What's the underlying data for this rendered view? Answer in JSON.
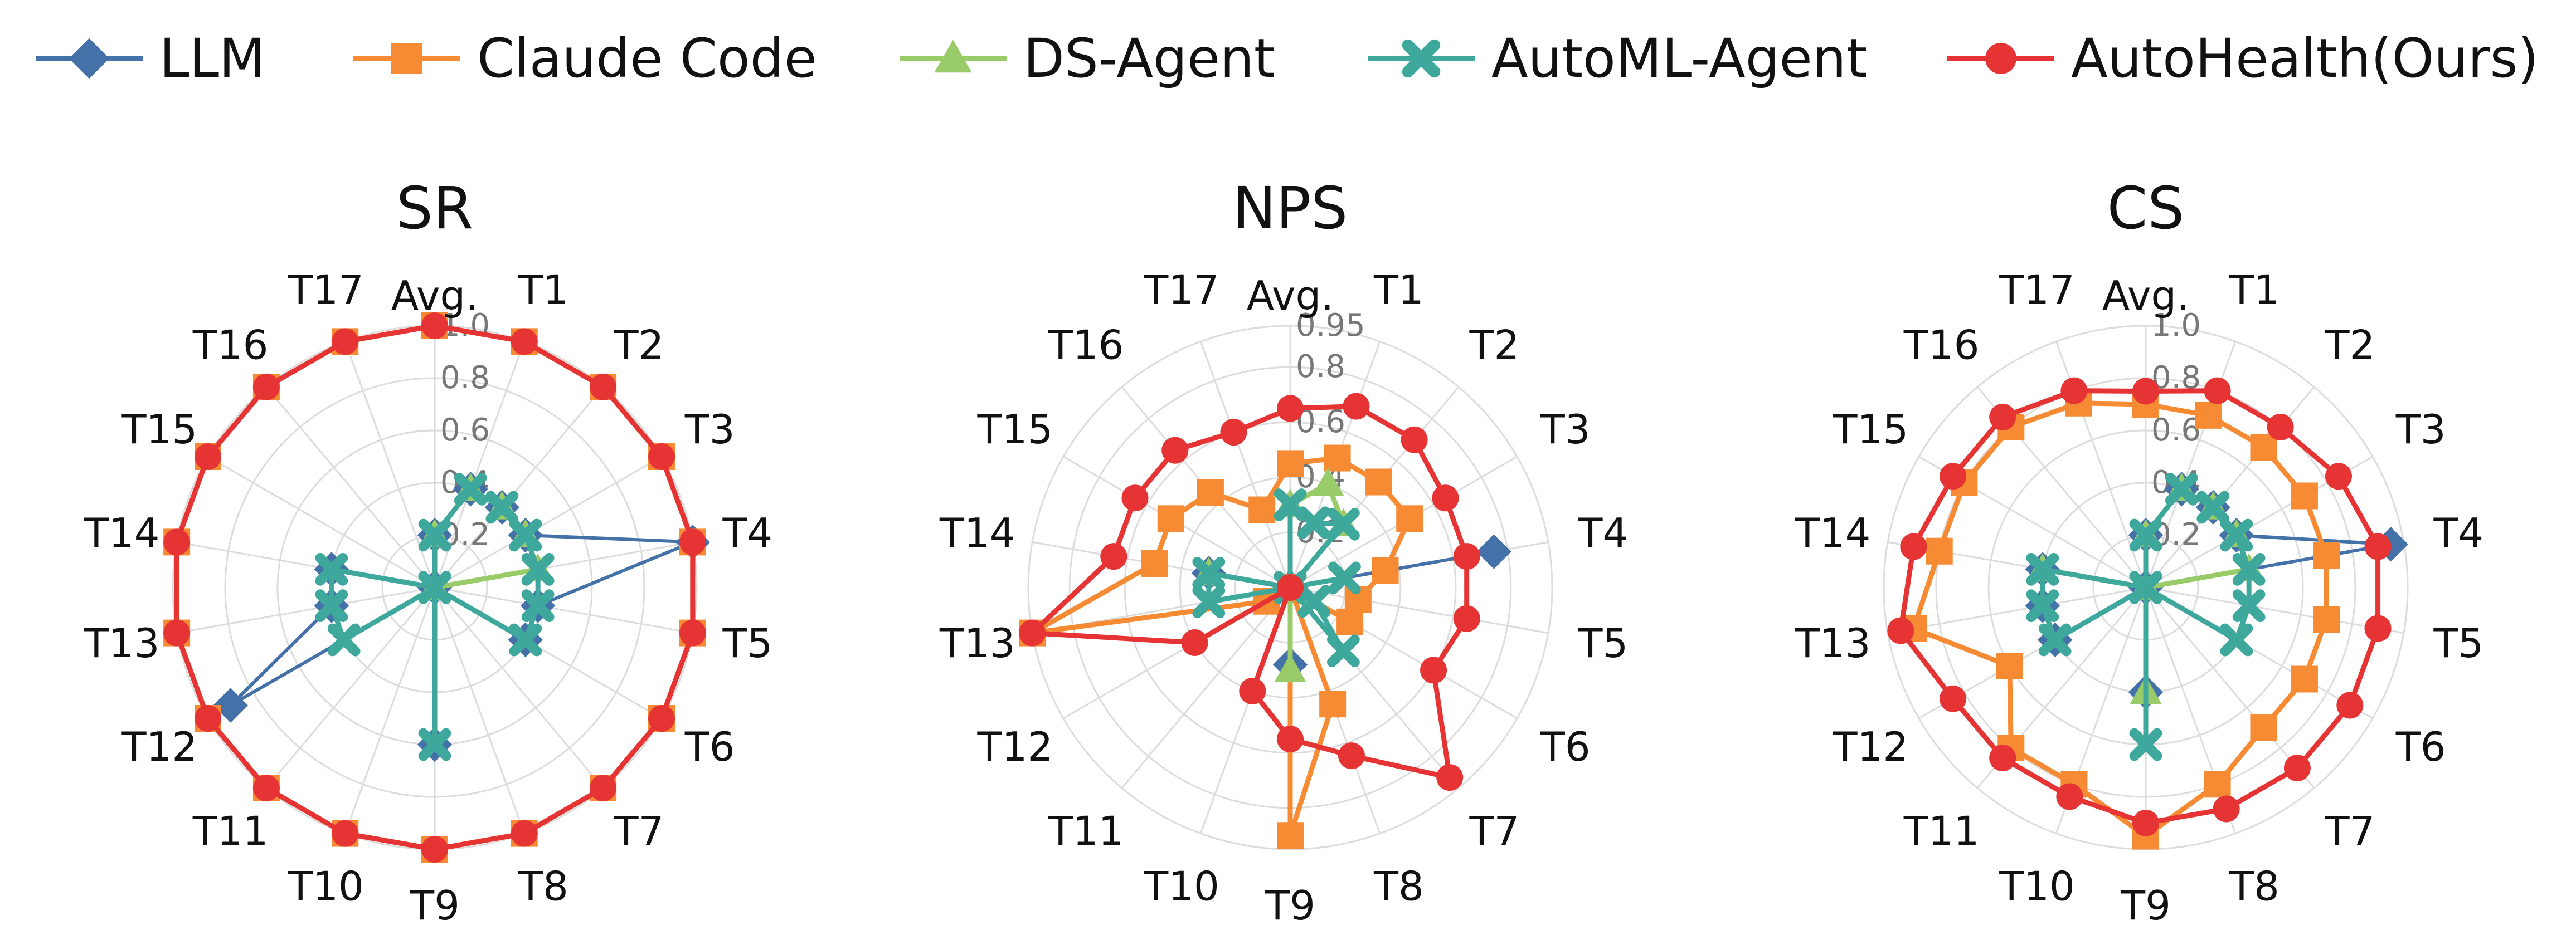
{
  "legend": [
    {
      "name": "LLM",
      "color": "#4472a8",
      "marker": "diamond"
    },
    {
      "name": "Claude Code",
      "color": "#f68b33",
      "marker": "square"
    },
    {
      "name": "DS-Agent",
      "color": "#9acb69",
      "marker": "triangle"
    },
    {
      "name": "AutoML-Agent",
      "color": "#3fa89c",
      "marker": "x"
    },
    {
      "name": "AutoHealth(Ours)",
      "color": "#e63435",
      "marker": "circle"
    }
  ],
  "chart_data": [
    {
      "type": "radar",
      "title": "SR",
      "axes": [
        "Avg.",
        "T1",
        "T2",
        "T3",
        "T4",
        "T5",
        "T6",
        "T7",
        "T8",
        "T9",
        "T10",
        "T11",
        "T12",
        "T13",
        "T14",
        "T15",
        "T16",
        "T17"
      ],
      "rmax": 1.0,
      "ticks": [
        0.2,
        0.4,
        0.6,
        0.8,
        1.0
      ],
      "tick_labels": [
        "0.2",
        "0.4",
        "0.6",
        "0.8",
        "1.0"
      ],
      "series": [
        {
          "name": "LLM",
          "values": [
            0.2,
            0.4,
            0.4,
            0.4,
            1.0,
            0.4,
            0.4,
            0,
            0,
            0.6,
            0,
            0,
            0.9,
            0.4,
            0.4,
            0,
            0,
            0
          ]
        },
        {
          "name": "Claude Code",
          "values": [
            1,
            1,
            1,
            1,
            1,
            1,
            1,
            1,
            1,
            1,
            1,
            1,
            1,
            1,
            1,
            1,
            1,
            1
          ]
        },
        {
          "name": "DS-Agent",
          "values": [
            0.2,
            0.4,
            0.4,
            0.4,
            0.4,
            0,
            0,
            0,
            0,
            0,
            0,
            0,
            0,
            0,
            0,
            0,
            0,
            0
          ]
        },
        {
          "name": "AutoML-Agent",
          "values": [
            0.2,
            0.4,
            0.4,
            0.4,
            0.4,
            0.4,
            0.4,
            0,
            0,
            0.6,
            0,
            0,
            0.4,
            0.4,
            0.4,
            0,
            0,
            0
          ]
        },
        {
          "name": "AutoHealth(Ours)",
          "values": [
            1,
            1,
            1,
            1,
            1,
            1,
            1,
            1,
            1,
            1,
            1,
            1,
            1,
            1,
            1,
            1,
            1,
            1
          ]
        }
      ]
    },
    {
      "type": "radar",
      "title": "NPS",
      "axes": [
        "Avg.",
        "T1",
        "T2",
        "T3",
        "T4",
        "T5",
        "T6",
        "T7",
        "T8",
        "T9",
        "T10",
        "T11",
        "T12",
        "T13",
        "T14",
        "T15",
        "T16",
        "T17"
      ],
      "rmax": 0.95,
      "ticks": [
        0.2,
        0.4,
        0.6,
        0.8,
        0.95
      ],
      "tick_labels": [
        "0.2",
        "0.4",
        "0.6",
        "0.8",
        "0.95"
      ],
      "series": [
        {
          "name": "LLM",
          "values": [
            0,
            0,
            0,
            0,
            0.75,
            0,
            0,
            0,
            0,
            0.28,
            0,
            0,
            0,
            0,
            0.3,
            0,
            0,
            0
          ]
        },
        {
          "name": "Claude Code",
          "values": [
            0.45,
            0.5,
            0.5,
            0.5,
            0.35,
            0.25,
            0.25,
            0,
            0.45,
            0.9,
            0,
            0,
            0.1,
            0.95,
            0.5,
            0.5,
            0.45,
            0.3
          ]
        },
        {
          "name": "DS-Agent",
          "values": [
            0.3,
            0.4,
            0.3,
            0,
            0,
            0,
            0,
            0,
            0,
            0.3,
            0,
            0,
            0,
            0,
            0.3,
            0,
            0,
            0
          ]
        },
        {
          "name": "AutoML-Agent",
          "values": [
            0.3,
            0.25,
            0.3,
            0,
            0.2,
            0,
            0.1,
            0.3,
            0,
            0,
            0,
            0,
            0,
            0.3,
            0.3,
            0,
            0,
            0
          ]
        },
        {
          "name": "AutoHealth(Ours)",
          "values": [
            0.65,
            0.7,
            0.7,
            0.65,
            0.65,
            0.65,
            0.6,
            0.9,
            0.65,
            0.55,
            0.4,
            0,
            0.4,
            0.95,
            0.65,
            0.65,
            0.65,
            0.6
          ]
        }
      ]
    },
    {
      "type": "radar",
      "title": "CS",
      "axes": [
        "Avg.",
        "T1",
        "T2",
        "T3",
        "T4",
        "T5",
        "T6",
        "T7",
        "T8",
        "T9",
        "T10",
        "T11",
        "T12",
        "T13",
        "T14",
        "T15",
        "T16",
        "T17"
      ],
      "rmax": 1.0,
      "ticks": [
        0.2,
        0.4,
        0.6,
        0.8,
        1.0
      ],
      "tick_labels": [
        "0.2",
        "0.4",
        "0.6",
        "0.8",
        "1.0"
      ],
      "series": [
        {
          "name": "LLM",
          "values": [
            0.2,
            0.4,
            0.4,
            0.4,
            0.95,
            0,
            0,
            0,
            0,
            0.4,
            0,
            0,
            0.4,
            0.4,
            0.4,
            0,
            0,
            0
          ]
        },
        {
          "name": "Claude Code",
          "values": [
            0.7,
            0.7,
            0.7,
            0.7,
            0.7,
            0.7,
            0.7,
            0.7,
            0.8,
            0.95,
            0.8,
            0.8,
            0.6,
            0.9,
            0.8,
            0.8,
            0.8,
            0.75
          ]
        },
        {
          "name": "DS-Agent",
          "values": [
            0.2,
            0.4,
            0.4,
            0.4,
            0.4,
            0,
            0,
            0,
            0,
            0.4,
            0,
            0,
            0,
            0,
            0.4,
            0,
            0,
            0
          ]
        },
        {
          "name": "AutoML-Agent",
          "values": [
            0.2,
            0.4,
            0.4,
            0.4,
            0.4,
            0.4,
            0.4,
            0,
            0,
            0.6,
            0,
            0,
            0.4,
            0.4,
            0.4,
            0,
            0,
            0
          ]
        },
        {
          "name": "AutoHealth(Ours)",
          "values": [
            0.75,
            0.8,
            0.8,
            0.85,
            0.9,
            0.9,
            0.9,
            0.9,
            0.9,
            0.9,
            0.85,
            0.85,
            0.85,
            0.95,
            0.9,
            0.85,
            0.85,
            0.8
          ]
        }
      ]
    }
  ]
}
